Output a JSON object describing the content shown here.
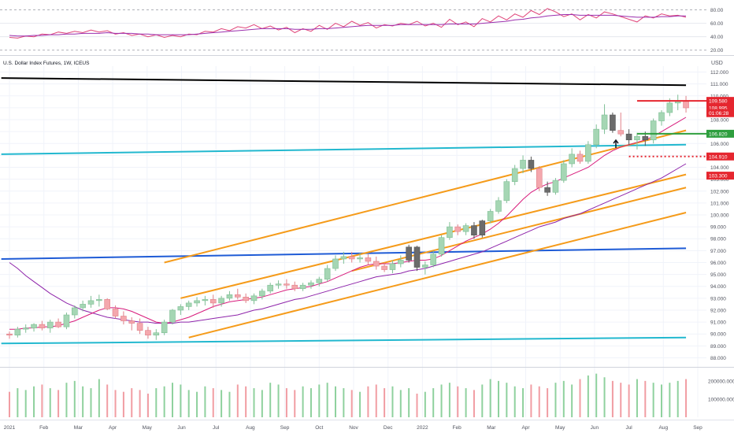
{
  "header": {
    "title": "U.S. Dollar Index Futures, 1W, ICEUS",
    "currency": "USD"
  },
  "colors": {
    "up": "#a5d6b4",
    "up_border": "#7fbf95",
    "down": "#f4a7ad",
    "down_border": "#e08088",
    "dark_candle": "#6b6b6b",
    "rsi": "#e0457a",
    "rsi_ma": "#9b2fae",
    "ma_fast": "#d81b7c",
    "ma_slow": "#8e24aa",
    "orange": "#f59b1a",
    "cyan": "#22b8cf",
    "blue": "#1e5bd6",
    "black": "#000000",
    "red_level": "#e5262f",
    "green_level": "#2e9e3e",
    "grid": "#f0f3fa",
    "axis_text": "#50535e",
    "vol_up": "#8fd19e",
    "vol_down": "#f19da3"
  },
  "rsi_panel": {
    "ticks": [
      "80.00",
      "60.00",
      "40.00",
      "20.00"
    ],
    "rsi": [
      39,
      38,
      41,
      40,
      44,
      43,
      47,
      45,
      48,
      46,
      50,
      47,
      49,
      44,
      46,
      42,
      44,
      40,
      43,
      39,
      42,
      40,
      44,
      43,
      48,
      47,
      52,
      49,
      55,
      53,
      58,
      52,
      56,
      50,
      54,
      46,
      52,
      48,
      57,
      51,
      60,
      55,
      63,
      57,
      61,
      53,
      58,
      56,
      60,
      58,
      63,
      56,
      60,
      54,
      66,
      58,
      62,
      55,
      67,
      62,
      71,
      65,
      74,
      69,
      79,
      73,
      82,
      77,
      70,
      74,
      65,
      73,
      68,
      77,
      74,
      70,
      66,
      62,
      71,
      68,
      74,
      71,
      72,
      69
    ],
    "rsi_ma": [
      42,
      41,
      41,
      42,
      42,
      43,
      43,
      44,
      44,
      45,
      45,
      45,
      46,
      45,
      45,
      45,
      44,
      44,
      43,
      43,
      43,
      43,
      43,
      44,
      45,
      46,
      47,
      48,
      49,
      50,
      51,
      52,
      52,
      52,
      52,
      51,
      51,
      51,
      52,
      52,
      53,
      54,
      55,
      56,
      57,
      57,
      57,
      57,
      58,
      58,
      58,
      58,
      58,
      58,
      59,
      59,
      59,
      59,
      60,
      61,
      62,
      63,
      65,
      66,
      68,
      69,
      71,
      72,
      73,
      73,
      72,
      72,
      72,
      72,
      72,
      71,
      70,
      69,
      69,
      69,
      70,
      70,
      71,
      71
    ]
  },
  "price_axis": {
    "ticks": [
      "112.000",
      "111.000",
      "110.000",
      "109.000",
      "108.000",
      "107.000",
      "106.000",
      "105.000",
      "104.000",
      "103.000",
      "102.000",
      "101.000",
      "100.000",
      "99.000",
      "98.000",
      "97.000",
      "96.000",
      "95.000",
      "94.000",
      "93.000",
      "92.000",
      "91.000",
      "90.000",
      "89.000",
      "88.000"
    ],
    "labels": [
      {
        "text": "109.580",
        "color": "#e5262f",
        "value": 109.58
      },
      {
        "text": "108.995",
        "color": "#e5262f",
        "value": 108.995
      },
      {
        "text": "01:06:28",
        "color": "#e5262f",
        "value": 108.55
      },
      {
        "text": "106.820",
        "color": "#2e9e3e",
        "value": 106.82
      },
      {
        "text": "104.910",
        "color": "#e5262f",
        "value": 104.91
      },
      {
        "text": "103.300",
        "color": "#e5262f",
        "value": 103.3
      }
    ]
  },
  "volume_axis": {
    "ticks": [
      "200000.000",
      "100000.000"
    ]
  },
  "time_axis": {
    "labels": [
      "2021",
      "Feb",
      "Mar",
      "Apr",
      "May",
      "Jun",
      "Jul",
      "Aug",
      "Sep",
      "Oct",
      "Nov",
      "Dec",
      "2022",
      "Feb",
      "Mar",
      "Apr",
      "May",
      "Jun",
      "Jul",
      "Aug",
      "Sep"
    ]
  },
  "chart_data": {
    "type": "candlestick",
    "title": "U.S. Dollar Index Futures, 1W, ICEUS",
    "ylim": [
      87.5,
      112.5
    ],
    "candles": [
      [
        90.0,
        90.2,
        89.6,
        89.9
      ],
      [
        89.9,
        90.6,
        89.7,
        90.4
      ],
      [
        90.4,
        90.8,
        90.1,
        90.5
      ],
      [
        90.5,
        90.9,
        90.2,
        90.8
      ],
      [
        90.8,
        91.1,
        90.3,
        90.5
      ],
      [
        90.5,
        91.2,
        90.1,
        91.0
      ],
      [
        91.0,
        91.3,
        90.5,
        90.6
      ],
      [
        90.6,
        91.8,
        90.4,
        91.6
      ],
      [
        91.6,
        92.4,
        91.3,
        92.2
      ],
      [
        92.2,
        92.8,
        91.9,
        92.5
      ],
      [
        92.5,
        93.2,
        92.2,
        92.8
      ],
      [
        92.8,
        93.3,
        92.3,
        92.9
      ],
      [
        92.9,
        93.0,
        92.0,
        92.1
      ],
      [
        92.1,
        92.4,
        91.3,
        91.5
      ],
      [
        91.5,
        91.9,
        90.8,
        91.1
      ],
      [
        91.1,
        91.4,
        90.3,
        90.9
      ],
      [
        90.9,
        91.3,
        90.0,
        90.3
      ],
      [
        90.3,
        90.6,
        89.6,
        89.9
      ],
      [
        89.9,
        90.4,
        89.5,
        90.1
      ],
      [
        90.1,
        91.2,
        89.9,
        91.0
      ],
      [
        91.0,
        92.1,
        90.8,
        92.0
      ],
      [
        92.0,
        92.5,
        91.6,
        92.3
      ],
      [
        92.3,
        92.8,
        92.0,
        92.6
      ],
      [
        92.6,
        93.1,
        92.3,
        92.8
      ],
      [
        92.8,
        93.2,
        92.4,
        92.9
      ],
      [
        92.9,
        93.3,
        92.2,
        92.6
      ],
      [
        92.6,
        93.2,
        92.3,
        93.0
      ],
      [
        93.0,
        93.6,
        92.8,
        93.3
      ],
      [
        93.3,
        93.8,
        92.9,
        93.1
      ],
      [
        93.1,
        93.4,
        92.6,
        92.8
      ],
      [
        92.8,
        93.4,
        92.5,
        93.2
      ],
      [
        93.2,
        93.8,
        92.9,
        93.6
      ],
      [
        93.6,
        94.3,
        93.4,
        94.1
      ],
      [
        94.1,
        94.5,
        93.8,
        94.2
      ],
      [
        94.2,
        94.6,
        93.8,
        94.1
      ],
      [
        94.1,
        94.4,
        93.6,
        93.8
      ],
      [
        93.8,
        94.3,
        93.6,
        94.1
      ],
      [
        94.1,
        94.5,
        93.8,
        94.3
      ],
      [
        94.3,
        94.8,
        94.0,
        94.6
      ],
      [
        94.6,
        95.8,
        94.4,
        95.5
      ],
      [
        95.5,
        96.6,
        95.3,
        96.3
      ],
      [
        96.3,
        96.9,
        95.9,
        96.5
      ],
      [
        96.5,
        96.9,
        96.0,
        96.3
      ],
      [
        96.3,
        96.8,
        96.0,
        96.4
      ],
      [
        96.4,
        96.7,
        95.8,
        96.1
      ],
      [
        96.1,
        96.5,
        95.4,
        95.7
      ],
      [
        95.7,
        96.0,
        95.2,
        95.4
      ],
      [
        95.4,
        96.2,
        95.1,
        95.9
      ],
      [
        95.9,
        96.6,
        95.6,
        96.2
      ],
      [
        96.2,
        97.5,
        96.0,
        97.3
      ],
      [
        97.3,
        97.4,
        95.3,
        95.6
      ],
      [
        95.6,
        96.1,
        95.0,
        95.8
      ],
      [
        95.8,
        97.0,
        95.6,
        96.7
      ],
      [
        96.7,
        98.3,
        96.5,
        98.1
      ],
      [
        98.1,
        99.4,
        97.9,
        99.0
      ],
      [
        99.0,
        99.2,
        98.3,
        98.6
      ],
      [
        98.6,
        99.3,
        98.3,
        99.1
      ],
      [
        99.1,
        99.4,
        98.0,
        98.3
      ],
      [
        98.3,
        99.6,
        98.1,
        99.5
      ],
      [
        99.5,
        100.5,
        99.3,
        100.3
      ],
      [
        100.3,
        101.5,
        100.1,
        101.2
      ],
      [
        101.2,
        103.0,
        101.0,
        102.8
      ],
      [
        102.8,
        104.2,
        102.5,
        103.9
      ],
      [
        103.9,
        105.0,
        103.5,
        104.6
      ],
      [
        104.6,
        104.9,
        103.6,
        103.9
      ],
      [
        103.9,
        104.1,
        102.0,
        102.3
      ],
      [
        102.3,
        102.8,
        101.6,
        101.9
      ],
      [
        101.9,
        103.1,
        101.7,
        102.9
      ],
      [
        102.9,
        104.6,
        102.7,
        104.3
      ],
      [
        104.3,
        105.6,
        104.0,
        105.1
      ],
      [
        105.1,
        105.4,
        104.3,
        104.5
      ],
      [
        104.5,
        106.2,
        104.3,
        105.9
      ],
      [
        105.9,
        107.6,
        105.6,
        107.2
      ],
      [
        107.2,
        109.3,
        106.8,
        108.4
      ],
      [
        108.4,
        108.6,
        106.9,
        107.1
      ],
      [
        107.1,
        108.6,
        106.6,
        106.8
      ],
      [
        106.8,
        107.2,
        105.9,
        106.3
      ],
      [
        106.3,
        106.9,
        105.5,
        106.6
      ],
      [
        106.6,
        107.0,
        105.8,
        106.3
      ],
      [
        106.3,
        108.1,
        106.0,
        107.9
      ],
      [
        107.9,
        108.8,
        107.5,
        108.6
      ],
      [
        108.6,
        109.8,
        108.3,
        109.4
      ],
      [
        109.4,
        110.1,
        108.8,
        109.6
      ],
      [
        109.6,
        110.0,
        108.6,
        108.995
      ]
    ],
    "volume": [
      140000,
      160000,
      150000,
      170000,
      180000,
      160000,
      150000,
      190000,
      200000,
      170000,
      160000,
      210000,
      180000,
      150000,
      140000,
      160000,
      150000,
      130000,
      160000,
      170000,
      190000,
      180000,
      150000,
      140000,
      170000,
      160000,
      150000,
      140000,
      180000,
      170000,
      160000,
      150000,
      190000,
      180000,
      160000,
      150000,
      170000,
      160000,
      180000,
      190000,
      170000,
      160000,
      150000,
      140000,
      170000,
      180000,
      160000,
      170000,
      150000,
      160000,
      130000,
      140000,
      160000,
      180000,
      190000,
      170000,
      160000,
      150000,
      180000,
      210000,
      200000,
      190000,
      170000,
      160000,
      180000,
      170000,
      160000,
      190000,
      200000,
      180000,
      210000,
      230000,
      240000,
      220000,
      200000,
      190000,
      180000,
      210000,
      200000,
      190000,
      180000,
      190000,
      200000,
      210000
    ],
    "ma_fast": [
      90.4,
      90.4,
      90.5,
      90.5,
      90.6,
      90.6,
      90.7,
      90.9,
      91.1,
      91.4,
      91.7,
      92.0,
      92.2,
      92.2,
      92.1,
      91.9,
      91.6,
      91.3,
      91.0,
      90.9,
      91.0,
      91.2,
      91.4,
      91.7,
      92.0,
      92.3,
      92.5,
      92.7,
      92.8,
      92.9,
      93.0,
      93.1,
      93.3,
      93.5,
      93.7,
      93.8,
      93.9,
      94.0,
      94.2,
      94.4,
      94.7,
      95.0,
      95.3,
      95.6,
      95.8,
      95.9,
      95.9,
      95.9,
      96.0,
      96.1,
      96.2,
      96.2,
      96.3,
      96.6,
      97.0,
      97.4,
      97.8,
      98.1,
      98.4,
      98.8,
      99.3,
      99.9,
      100.6,
      101.3,
      101.9,
      102.3,
      102.6,
      102.8,
      103.1,
      103.4,
      103.7,
      104.0,
      104.5,
      105.0,
      105.4,
      105.7,
      105.9,
      106.1,
      106.3,
      106.6,
      107.0,
      107.4,
      107.8,
      108.2
    ],
    "ma_slow": [
      96.0,
      95.5,
      94.9,
      94.4,
      93.9,
      93.4,
      93.0,
      92.6,
      92.3,
      92.0,
      91.8,
      91.6,
      91.4,
      91.3,
      91.2,
      91.1,
      91.0,
      91.0,
      90.9,
      90.9,
      90.9,
      91.0,
      91.0,
      91.1,
      91.2,
      91.3,
      91.4,
      91.5,
      91.6,
      91.8,
      92.0,
      92.1,
      92.3,
      92.5,
      92.7,
      92.9,
      93.0,
      93.2,
      93.4,
      93.6,
      93.8,
      94.0,
      94.2,
      94.4,
      94.6,
      94.8,
      94.9,
      95.0,
      95.1,
      95.3,
      95.4,
      95.5,
      95.7,
      95.9,
      96.1,
      96.3,
      96.5,
      96.7,
      96.9,
      97.2,
      97.5,
      97.8,
      98.1,
      98.4,
      98.7,
      99.0,
      99.2,
      99.4,
      99.7,
      99.9,
      100.1,
      100.4,
      100.7,
      101.0,
      101.3,
      101.6,
      101.9,
      102.2,
      102.5,
      102.8,
      103.1,
      103.5,
      103.9,
      104.3
    ],
    "trend_lines": [
      {
        "name": "long-term-resistance",
        "color": "#000000",
        "width": 2,
        "from": [
          -1,
          111.5
        ],
        "to": [
          83,
          110.9
        ]
      },
      {
        "name": "support-cyan-upper",
        "color": "#22b8cf",
        "width": 2,
        "from": [
          -1,
          105.1
        ],
        "to": [
          83,
          105.9
        ]
      },
      {
        "name": "support-blue",
        "color": "#1e5bd6",
        "width": 2,
        "from": [
          -1,
          96.3
        ],
        "to": [
          83,
          97.2
        ]
      },
      {
        "name": "support-cyan-lower",
        "color": "#22b8cf",
        "width": 2,
        "from": [
          -1,
          89.2
        ],
        "to": [
          83,
          89.7
        ]
      },
      {
        "name": "channel-orange-top",
        "color": "#f59b1a",
        "width": 2,
        "from": [
          19,
          96.0
        ],
        "to": [
          83,
          107.1
        ]
      },
      {
        "name": "channel-orange-mid",
        "color": "#f59b1a",
        "width": 2,
        "from": [
          21,
          93.0
        ],
        "to": [
          83,
          103.4
        ]
      },
      {
        "name": "channel-orange-bottom",
        "color": "#f59b1a",
        "width": 2,
        "from": [
          22,
          89.7
        ],
        "to": [
          83,
          100.2
        ]
      },
      {
        "name": "channel-orange-low2",
        "color": "#f59b1a",
        "width": 2,
        "from": [
          42,
          95.3
        ],
        "to": [
          83,
          102.3
        ]
      }
    ],
    "levels": [
      {
        "name": "level-109-580",
        "color": "#e5262f",
        "value": 109.58,
        "from": 77,
        "style": "solid"
      },
      {
        "name": "level-106-820",
        "color": "#2e9e3e",
        "value": 106.82,
        "from": 77,
        "style": "solid"
      },
      {
        "name": "level-104-910",
        "color": "#e5262f",
        "value": 104.91,
        "from": 76,
        "style": "dotted"
      }
    ]
  }
}
